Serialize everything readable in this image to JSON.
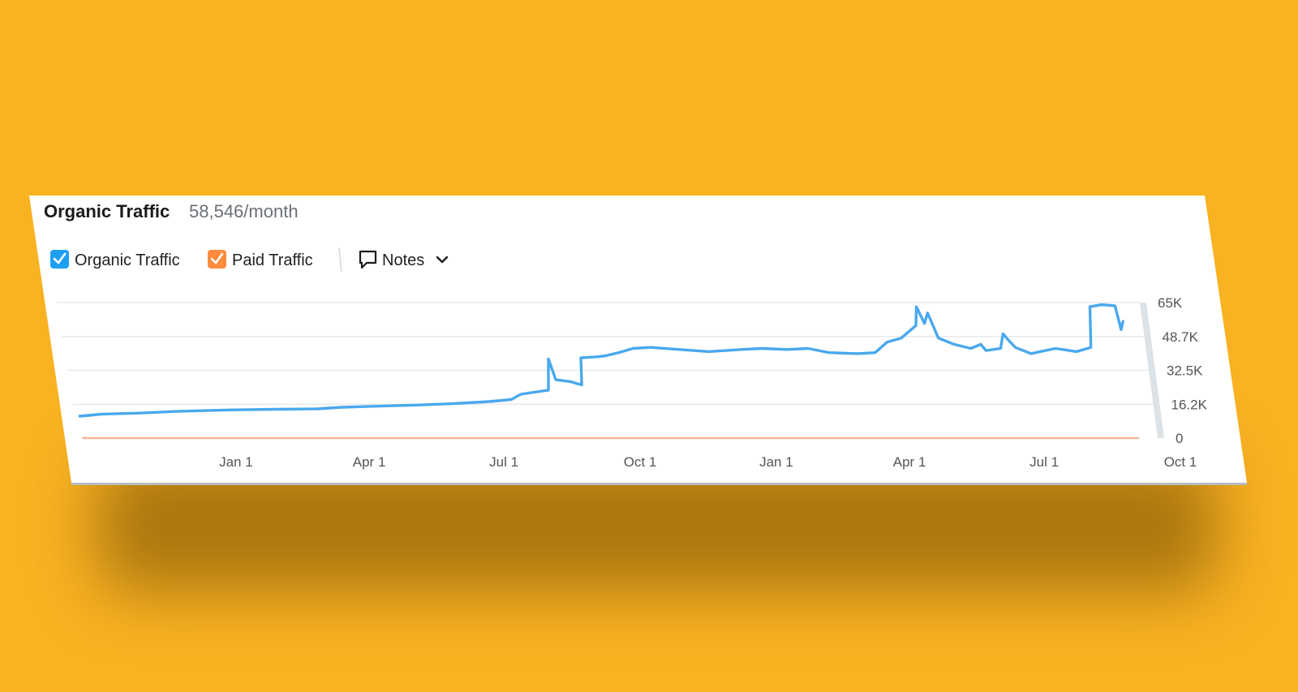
{
  "header": {
    "title": "Organic Traffic",
    "value": "58,546",
    "unit": "/month"
  },
  "legend": {
    "organic": {
      "label": "Organic Traffic",
      "checked": true,
      "color": "#1EA0F2"
    },
    "paid": {
      "label": "Paid Traffic",
      "checked": true,
      "color": "#FF8B3D"
    },
    "notes": {
      "label": "Notes",
      "icon": "comment-icon",
      "chevron": "chevron-down-icon"
    }
  },
  "colors": {
    "background": "#F9B222",
    "organic_line": "#4AA8EE",
    "paid_line": "#F4B89A",
    "grid": "#E3E6EA",
    "card": "#FFFFFF"
  },
  "chart_data": {
    "type": "line",
    "title": "",
    "xlabel": "",
    "ylabel": "",
    "x_ticks": [
      "Jan 1",
      "Apr 1",
      "Jul 1",
      "Oct 1",
      "Jan 1",
      "Apr 1",
      "Jul 1",
      "Oct 1"
    ],
    "y_ticks": [
      "0",
      "16.2K",
      "32.5K",
      "48.7K",
      "65K"
    ],
    "ylim": [
      0,
      65000
    ],
    "grid": true,
    "legend_position": "top-left",
    "series": [
      {
        "name": "Organic Traffic",
        "color": "#4AA8EE",
        "points": [
          [
            "2021-10-05",
            10500
          ],
          [
            "2021-10-20",
            11500
          ],
          [
            "2021-11-15",
            12000
          ],
          [
            "2021-12-10",
            12800
          ],
          [
            "2022-01-15",
            13500
          ],
          [
            "2022-02-15",
            13800
          ],
          [
            "2022-03-15",
            14000
          ],
          [
            "2022-04-01",
            14800
          ],
          [
            "2022-04-20",
            15200
          ],
          [
            "2022-05-20",
            15800
          ],
          [
            "2022-06-15",
            16500
          ],
          [
            "2022-07-10",
            17500
          ],
          [
            "2022-07-25",
            18500
          ],
          [
            "2022-08-01",
            21000
          ],
          [
            "2022-08-10",
            22000
          ],
          [
            "2022-08-20",
            23000
          ],
          [
            "2022-08-23",
            38000
          ],
          [
            "2022-08-26",
            28000
          ],
          [
            "2022-09-05",
            27000
          ],
          [
            "2022-09-12",
            25500
          ],
          [
            "2022-09-14",
            38500
          ],
          [
            "2022-09-25",
            39000
          ],
          [
            "2022-10-01",
            39500
          ],
          [
            "2022-10-10",
            41000
          ],
          [
            "2022-10-20",
            43000
          ],
          [
            "2022-11-01",
            43500
          ],
          [
            "2022-11-20",
            42500
          ],
          [
            "2022-12-10",
            41500
          ],
          [
            "2023-01-01",
            42500
          ],
          [
            "2023-01-15",
            43000
          ],
          [
            "2023-02-01",
            42500
          ],
          [
            "2023-02-15",
            43000
          ],
          [
            "2023-03-01",
            41000
          ],
          [
            "2023-03-20",
            40500
          ],
          [
            "2023-04-01",
            41000
          ],
          [
            "2023-04-10",
            46000
          ],
          [
            "2023-04-20",
            48000
          ],
          [
            "2023-05-01",
            54000
          ],
          [
            "2023-05-03",
            63000
          ],
          [
            "2023-05-07",
            55000
          ],
          [
            "2023-05-10",
            60000
          ],
          [
            "2023-05-15",
            48000
          ],
          [
            "2023-05-25",
            45000
          ],
          [
            "2023-06-05",
            43000
          ],
          [
            "2023-06-12",
            45000
          ],
          [
            "2023-06-15",
            42000
          ],
          [
            "2023-06-25",
            43000
          ],
          [
            "2023-06-28",
            50000
          ],
          [
            "2023-07-01",
            47000
          ],
          [
            "2023-07-05",
            43500
          ],
          [
            "2023-07-15",
            40500
          ],
          [
            "2023-08-01",
            43000
          ],
          [
            "2023-08-15",
            41500
          ],
          [
            "2023-08-25",
            43500
          ],
          [
            "2023-08-28",
            63000
          ],
          [
            "2023-09-05",
            64000
          ],
          [
            "2023-09-14",
            63500
          ],
          [
            "2023-09-16",
            52000
          ],
          [
            "2023-09-18",
            56000
          ]
        ]
      },
      {
        "name": "Paid Traffic",
        "color": "#F4B89A",
        "points": [
          [
            "2021-10-05",
            0
          ],
          [
            "2023-09-18",
            0
          ]
        ]
      }
    ]
  }
}
